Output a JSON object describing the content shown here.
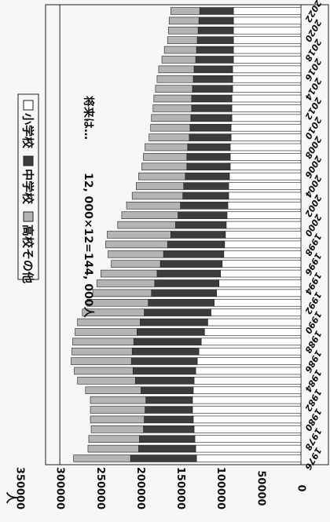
{
  "chart_data": {
    "type": "bar",
    "stacked": true,
    "orientation": "rotated-90",
    "y_unit": "人",
    "ylim": [
      0,
      350000
    ],
    "y_ticks": [
      "0",
      "50000",
      "100000",
      "150000",
      "200000",
      "250000",
      "300000",
      "350000"
    ],
    "gridlines": [
      300000
    ],
    "legend": {
      "placement": "top",
      "items": [
        {
          "label": "小学校",
          "marker": "□",
          "color": "#ffffff"
        },
        {
          "label": "中学校",
          "marker": "■",
          "color": "#3c3c3c"
        },
        {
          "label": "高校その他",
          "marker": "■",
          "color": "#b4b4b4"
        }
      ]
    },
    "annotation": {
      "prefix": "将来は…",
      "text": "12, 000×12=144, 000人"
    },
    "categories": [
      "1976",
      "1977",
      "1978",
      "1979",
      "1980",
      "1981",
      "1982",
      "1983",
      "1984",
      "1985",
      "1986",
      "1987",
      "1988",
      "1989",
      "1990",
      "1991",
      "1992",
      "1993",
      "1994",
      "1995",
      "1996",
      "1997",
      "1998",
      "1999",
      "2000",
      "2001",
      "2002",
      "2003",
      "2004",
      "2005",
      "2006",
      "2007",
      "2008",
      "2009",
      "2010",
      "2011",
      "2012",
      "2013",
      "2014",
      "2015",
      "2016",
      "2017",
      "2018",
      "2019",
      "2020",
      "2021",
      "2022"
    ],
    "x_tick_labels": [
      "1976",
      "1978",
      "1980",
      "1982",
      "1984",
      "1986",
      "1988",
      "1990",
      "1992",
      "1994",
      "1996",
      "1998",
      "2000",
      "2002",
      "2004",
      "2006",
      "2008",
      "2010",
      "2012",
      "2014",
      "2016",
      "2018",
      "2020",
      "2022"
    ],
    "series": [
      {
        "name": "小学校",
        "color": "#ffffff",
        "values": [
          130000,
          131000,
          132000,
          133000,
          134000,
          135000,
          135000,
          134000,
          133000,
          131000,
          129000,
          127000,
          124000,
          120000,
          116000,
          112000,
          108000,
          105000,
          102000,
          100000,
          98000,
          96000,
          95000,
          94000,
          93000,
          92000,
          91000,
          90000,
          90000,
          89000,
          88000,
          88000,
          88000,
          87000,
          87000,
          86000,
          86000,
          86000,
          85000,
          85000,
          85000,
          84000,
          84000,
          84000,
          84000,
          84000,
          84000
        ]
      },
      {
        "name": "中学校",
        "color": "#3c3c3c",
        "values": [
          82000,
          71000,
          69000,
          63000,
          61000,
          59000,
          58000,
          65000,
          73000,
          78000,
          82000,
          83000,
          84000,
          84000,
          84000,
          83000,
          82000,
          81000,
          80000,
          79000,
          77000,
          75000,
          71000,
          68000,
          63000,
          61000,
          59000,
          57000,
          56000,
          55000,
          54000,
          54000,
          53000,
          52000,
          51000,
          51000,
          50000,
          50000,
          50000,
          49000,
          48000,
          47000,
          46000,
          45000,
          44000,
          43000,
          42000
        ]
      },
      {
        "name": "高校その他",
        "color": "#b4b4b4",
        "values": [
          71000,
          63000,
          63000,
          65000,
          67000,
          68000,
          69000,
          69000,
          72000,
          73000,
          75000,
          75000,
          76000,
          77000,
          78000,
          77000,
          76000,
          73000,
          72000,
          70000,
          61000,
          69000,
          77000,
          79000,
          72000,
          70000,
          67000,
          63000,
          59000,
          58000,
          56000,
          54000,
          53000,
          50000,
          49000,
          49000,
          48000,
          47000,
          46000,
          45000,
          44000,
          42000,
          40000,
          37000,
          37000,
          37000,
          36000
        ]
      }
    ]
  }
}
